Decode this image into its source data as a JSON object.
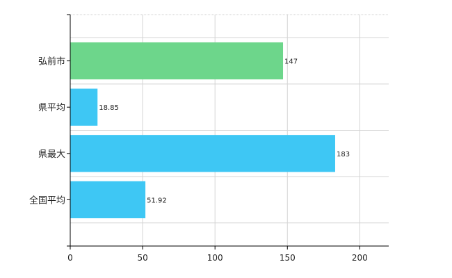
{
  "chart_data": {
    "type": "bar",
    "orientation": "horizontal",
    "categories": [
      "弘前市",
      "県平均",
      "県最大",
      "全国平均"
    ],
    "values": [
      147,
      18.85,
      183,
      51.92
    ],
    "data_labels": [
      "147",
      "18.85",
      "183",
      "51.92"
    ],
    "bar_colors": [
      "#6dd68b",
      "#3ec7f4",
      "#3ec7f4",
      "#3ec7f4"
    ],
    "xlim": [
      0,
      220
    ],
    "x_ticks": [
      0,
      50,
      100,
      150,
      200
    ],
    "x_tick_labels": [
      "0",
      "50",
      "100",
      "150",
      "200"
    ],
    "grid": true,
    "title": "",
    "xlabel": "",
    "ylabel": ""
  }
}
